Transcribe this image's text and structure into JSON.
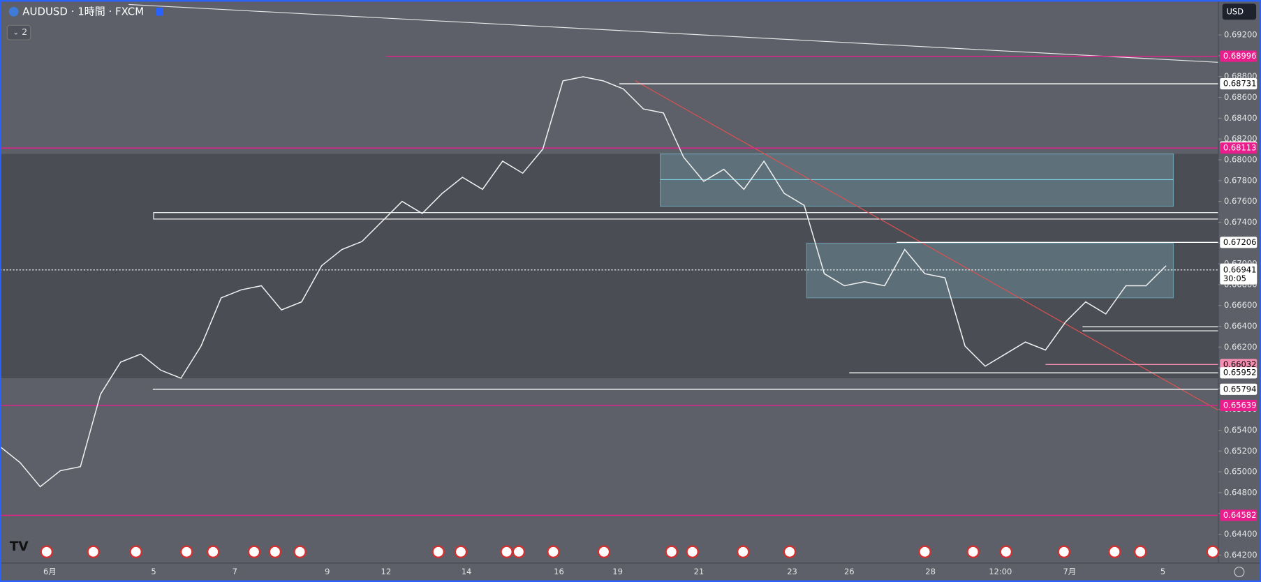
{
  "header": {
    "symbol": "AUDUSD · 1時間 · FXCM",
    "indicators": "2"
  },
  "currency": "USD",
  "chart_data": {
    "type": "line",
    "color": "#f2f2f2",
    "values": [
      0.65243,
      0.65089,
      0.64857,
      0.65011,
      0.6505,
      0.65746,
      0.66055,
      0.66132,
      0.65977,
      0.659,
      0.66209,
      0.66673,
      0.6675,
      0.66789,
      0.66557,
      0.66634,
      0.66982,
      0.67137,
      0.67214,
      0.67407,
      0.676,
      0.67484,
      0.67678,
      0.67832,
      0.67716,
      0.67987,
      0.67871,
      0.68103,
      0.68759,
      0.68798,
      0.68759,
      0.68682,
      0.68489,
      0.6845,
      0.68025,
      0.67793,
      0.67909,
      0.67716,
      0.67987,
      0.67678,
      0.67562,
      0.66905,
      0.66789,
      0.66828,
      0.66789,
      0.67137,
      0.66905,
      0.66866,
      0.66209,
      0.66016,
      0.66132,
      0.66248,
      0.66171,
      0.66441,
      0.66634,
      0.66518,
      0.66789,
      0.66789,
      0.66982
    ],
    "ylim": [
      0.64123,
      0.69532
    ],
    "yticks": [
      {
        "value": 0.692,
        "label": "0.69200"
      },
      {
        "value": 0.69,
        "label": "0.69000"
      },
      {
        "value": 0.688,
        "label": "0.68800"
      },
      {
        "value": 0.686,
        "label": "0.68600"
      },
      {
        "value": 0.684,
        "label": "0.68400"
      },
      {
        "value": 0.682,
        "label": "0.68200"
      },
      {
        "value": 0.68,
        "label": "0.68000"
      },
      {
        "value": 0.678,
        "label": "0.67800"
      },
      {
        "value": 0.676,
        "label": "0.67600"
      },
      {
        "value": 0.674,
        "label": "0.67400"
      },
      {
        "value": 0.672,
        "label": "0.67200"
      },
      {
        "value": 0.67,
        "label": "0.67000"
      },
      {
        "value": 0.668,
        "label": "0.66800"
      },
      {
        "value": 0.666,
        "label": "0.66600"
      },
      {
        "value": 0.664,
        "label": "0.66400"
      },
      {
        "value": 0.662,
        "label": "0.66200"
      },
      {
        "value": 0.66,
        "label": "0.66000"
      },
      {
        "value": 0.658,
        "label": "0.65800"
      },
      {
        "value": 0.656,
        "label": "0.65600"
      },
      {
        "value": 0.654,
        "label": "0.65400"
      },
      {
        "value": 0.652,
        "label": "0.65200"
      },
      {
        "value": 0.65,
        "label": "0.65000"
      },
      {
        "value": 0.648,
        "label": "0.64800"
      },
      {
        "value": 0.646,
        "label": "0.64600"
      },
      {
        "value": 0.644,
        "label": "0.64400"
      },
      {
        "value": 0.642,
        "label": "0.64200"
      }
    ],
    "x_labels": [
      "6月",
      "5",
      "7",
      "9",
      "12",
      "14",
      "16",
      "19",
      "21",
      "23",
      "26",
      "28",
      "12:00",
      "7月",
      "5"
    ],
    "levels": [
      {
        "value": 0.68996,
        "color": "#e91e8c"
      },
      {
        "value": 0.68731,
        "color": "#ffffff"
      },
      {
        "value": 0.68124,
        "color": "#ffffff"
      },
      {
        "value": 0.68113,
        "color": "#e91e8c"
      },
      {
        "value": 0.67206,
        "color": "#ffffff"
      },
      {
        "value": 0.66032,
        "color": "#f48fb1"
      },
      {
        "value": 0.65952,
        "color": "#ffffff"
      },
      {
        "value": 0.65794,
        "color": "#ffffff"
      },
      {
        "value": 0.65639,
        "color": "#e91e8c"
      },
      {
        "value": 0.64582,
        "color": "#e91e8c"
      }
    ],
    "current": {
      "value": 0.66941,
      "countdown": "30:05"
    }
  }
}
